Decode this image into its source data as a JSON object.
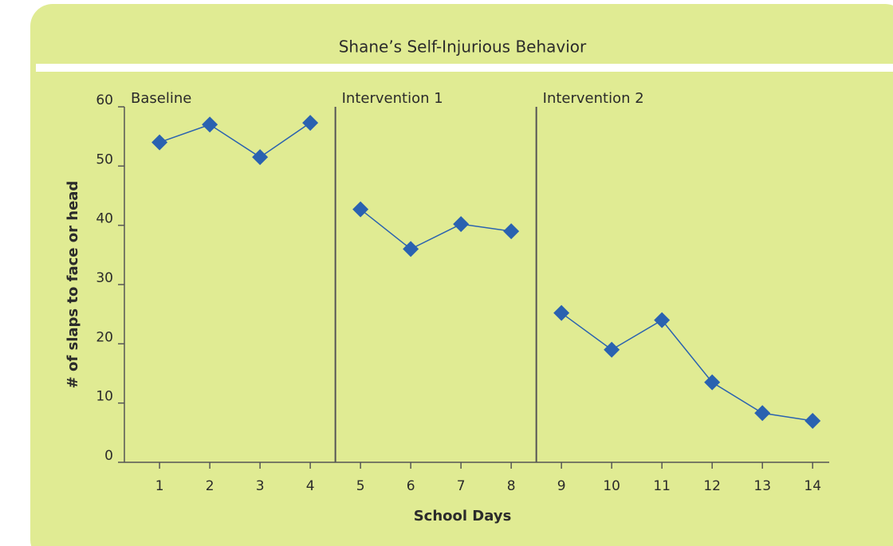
{
  "chart_data": {
    "type": "line",
    "title": "Shane’s Self-Injurious Behavior",
    "x_label": "School Days",
    "y_label": "# of slaps to face or head",
    "phases": [
      "Baseline",
      "Intervention 1",
      "Intervention 2"
    ],
    "phase_starts": [
      1,
      5,
      9
    ],
    "x": [
      1,
      2,
      3,
      4,
      5,
      6,
      7,
      8,
      9,
      10,
      11,
      12,
      13,
      14
    ],
    "series": [
      {
        "name": "Slaps",
        "color": "#2a62b0",
        "values": [
          54,
          57,
          51.5,
          57.3,
          42.7,
          36,
          40.2,
          39,
          25.2,
          19,
          24,
          13.5,
          8.3,
          7
        ]
      }
    ],
    "xlim": [
      0.3,
      14.33
    ],
    "xticks": [
      1,
      2,
      3,
      4,
      5,
      6,
      7,
      8,
      9,
      10,
      11,
      12,
      13,
      14
    ],
    "ylim": [
      0,
      60
    ],
    "yticks": [
      0,
      10,
      20,
      30,
      40,
      50,
      60
    ]
  }
}
